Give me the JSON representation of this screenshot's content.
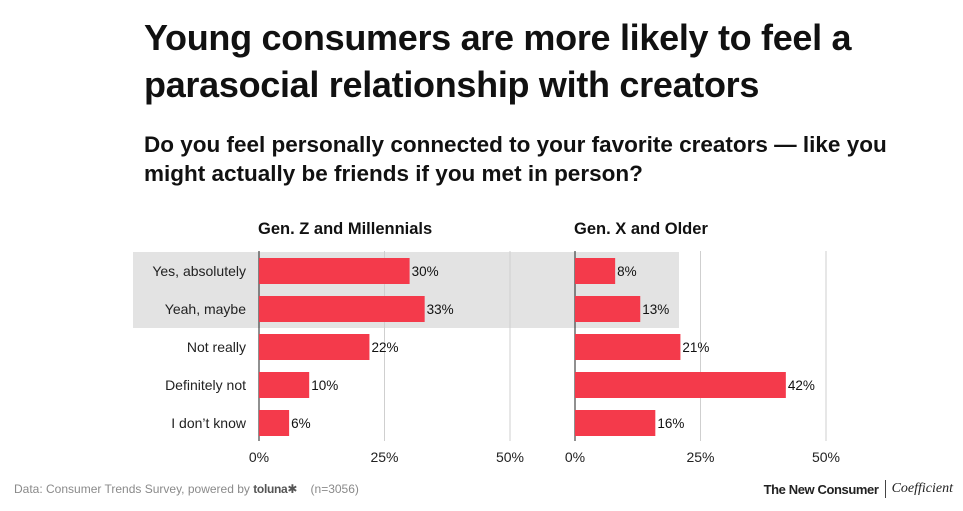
{
  "title": "Young consumers are more likely to feel a parasocial relationship with creators",
  "subtitle": "Do you feel personally connected to your favorite creators — like you might actually be friends if you met in person?",
  "chart_data": {
    "type": "bar",
    "orientation": "horizontal",
    "categories": [
      "Yes, absolutely",
      "Yeah, maybe",
      "Not really",
      "Definitely not",
      "I don’t know"
    ],
    "highlighted_categories": [
      "Yes, absolutely",
      "Yeah, maybe"
    ],
    "series": [
      {
        "name": "Gen. Z and Millennials",
        "values": [
          30,
          33,
          22,
          10,
          6
        ]
      },
      {
        "name": "Gen. X and Older",
        "values": [
          8,
          13,
          21,
          42,
          16
        ]
      }
    ],
    "value_suffix": "%",
    "xlim": [
      0,
      50
    ],
    "xticks": [
      0,
      25,
      50
    ],
    "xtick_labels": [
      "0%",
      "25%",
      "50%"
    ],
    "bar_color": "#f43a4b",
    "highlight_color": "#e3e3e3",
    "grid": true
  },
  "footer": {
    "source": "Data: Consumer Trends Survey, powered by",
    "source_brand": "toluna✱",
    "sample": "(n=3056)",
    "logo_primary": "The New Consumer",
    "logo_secondary": "Coefficient"
  }
}
